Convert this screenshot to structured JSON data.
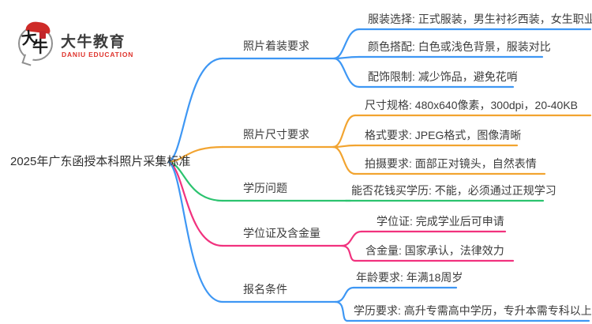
{
  "logo": {
    "brand_cn": "大牛教育",
    "brand_en": "DANIU EDUCATION",
    "bubble_char_top": "大",
    "bubble_char_bottom": "牛",
    "accent_red": "#ce2b28"
  },
  "root": {
    "label": "2025年广东函授本科照片采集标准"
  },
  "branches": [
    {
      "label": "照片着装要求",
      "color": "#3e97f4",
      "leaves": [
        "服装选择: 正式服装，男生衬衫西装，女生职业装",
        "颜色搭配: 白色或浅色背景，服装对比",
        "配饰限制: 减少饰品，避免花哨"
      ]
    },
    {
      "label": "照片尺寸要求",
      "color": "#f2a430",
      "leaves": [
        "尺寸规格: 480x640像素，300dpi，20-40KB",
        "格式要求: JPEG格式，图像清晰",
        "拍摄要求: 面部正对镜头，自然表情"
      ]
    },
    {
      "label": "学历问题",
      "color": "#2bc36f",
      "leaves": [
        "能否花钱买学历: 不能，必须通过正规学习"
      ]
    },
    {
      "label": "学位证及含金量",
      "color": "#f1327e",
      "leaves": [
        "学位证: 完成学业后可申请",
        "含金量: 国家承认，法律效力"
      ]
    },
    {
      "label": "报名条件",
      "color": "#3e97f4",
      "leaves": [
        "年龄要求: 年满18周岁",
        "学历要求: 高升专需高中学历，专升本需专科以上学历"
      ]
    }
  ]
}
